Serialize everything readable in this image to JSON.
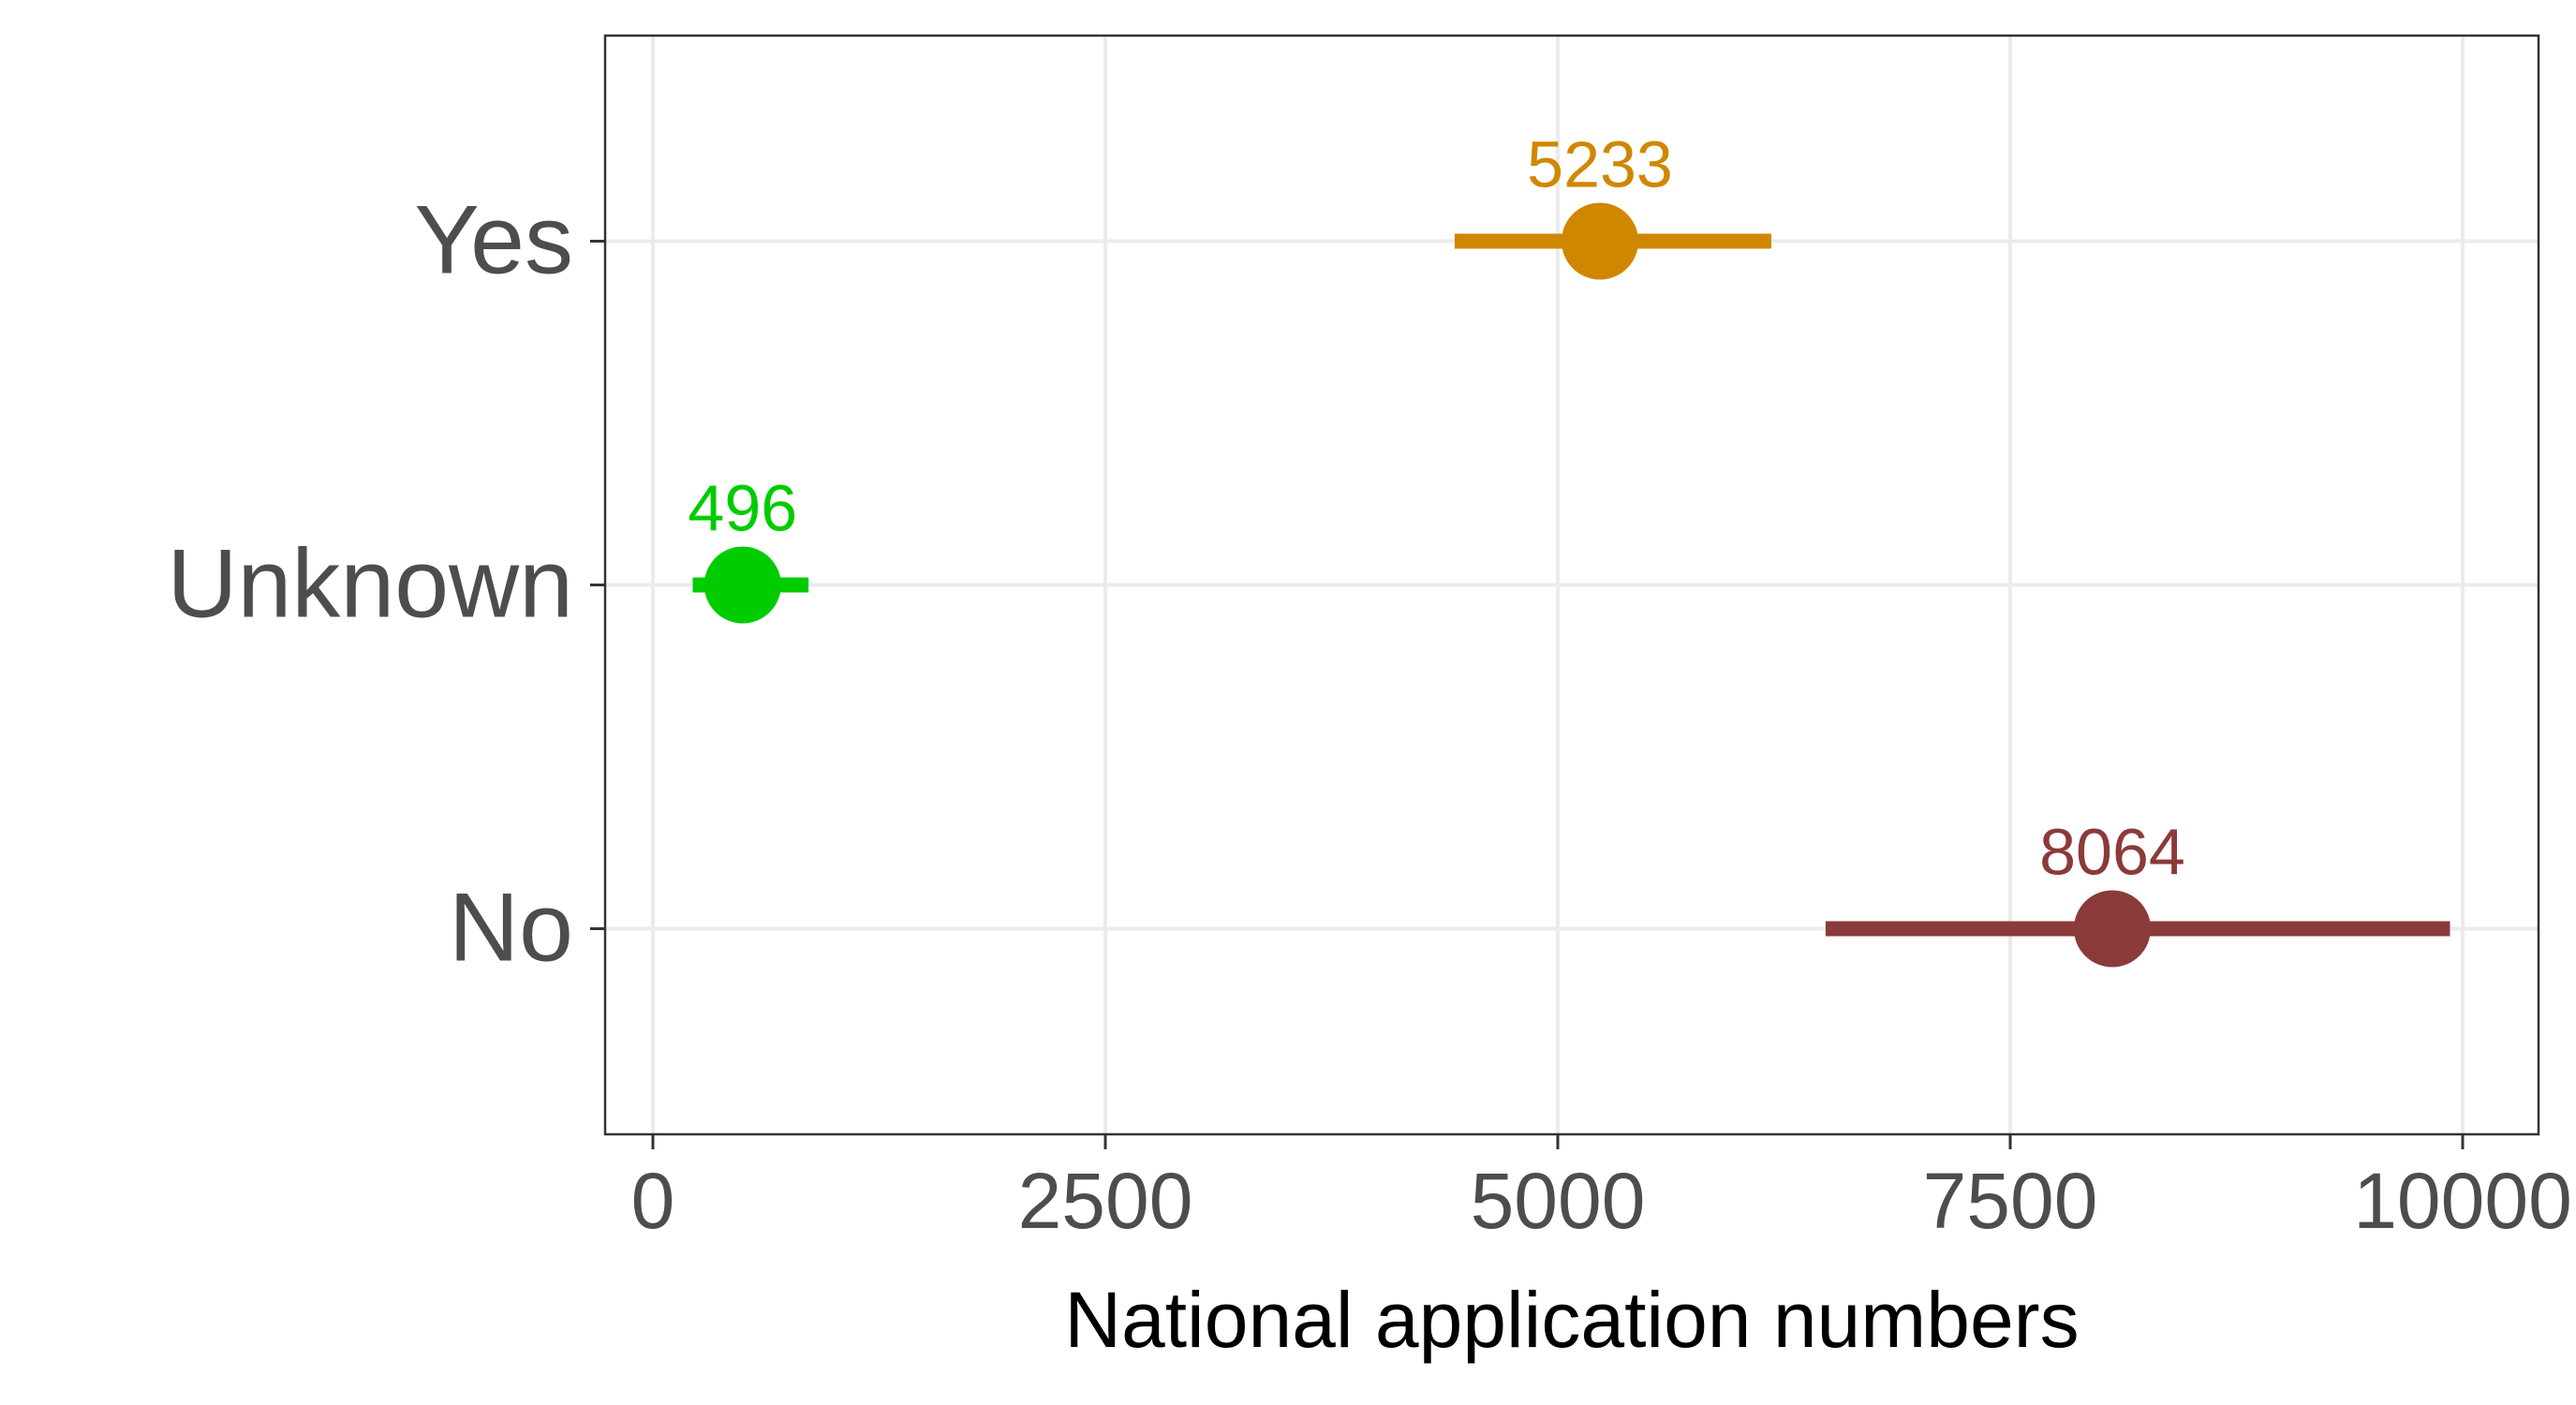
{
  "chart_data": {
    "type": "scatter",
    "title": "",
    "xlabel": "National application numbers",
    "ylabel": "",
    "xlim": [
      -1300,
      10200
    ],
    "x_ticks": [
      0,
      2500,
      5000,
      7500,
      10000
    ],
    "x_tick_labels": [
      "0",
      "2500",
      "5000",
      "7500",
      "10000"
    ],
    "categories": [
      "Yes",
      "Unknown",
      "No"
    ],
    "grid": true,
    "legend": "none",
    "points": [
      {
        "category": "Yes",
        "value": 5233,
        "label": "5233",
        "low": 4430,
        "high": 6180,
        "color": "#d08700"
      },
      {
        "category": "Unknown",
        "value": 496,
        "label": "496",
        "low": 220,
        "high": 860,
        "color": "#00cc00"
      },
      {
        "category": "No",
        "value": 8064,
        "label": "8064",
        "low": 6480,
        "high": 9930,
        "color": "#8b3a3a"
      }
    ]
  }
}
